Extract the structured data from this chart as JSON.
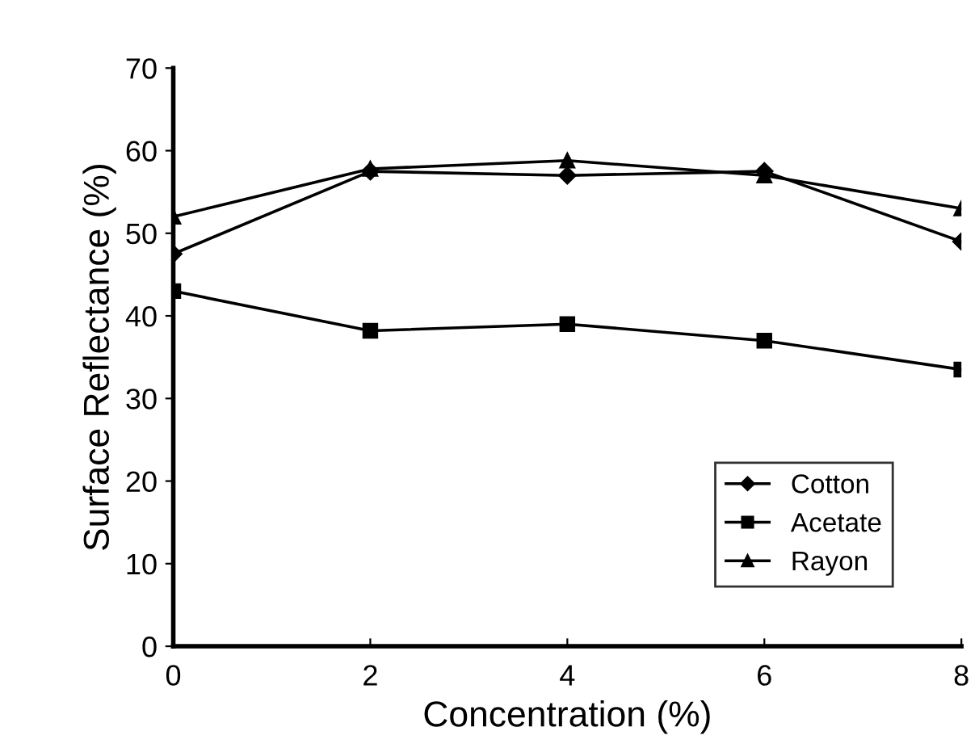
{
  "chart_data": {
    "type": "line",
    "xlabel": "Concentration (%)",
    "ylabel": "Surface Reflectance (%)",
    "x": [
      0,
      2,
      4,
      6,
      8
    ],
    "series": [
      {
        "name": "Cotton",
        "color": "#000000",
        "marker": "diamond",
        "values": [
          47.5,
          57.5,
          57,
          57.5,
          49
        ]
      },
      {
        "name": "Acetate",
        "color": "#000000",
        "marker": "square",
        "values": [
          43,
          38.2,
          39,
          37,
          33.5
        ]
      },
      {
        "name": "Rayon",
        "color": "#000000",
        "marker": "triangle",
        "values": [
          52,
          57.8,
          58.8,
          57,
          53
        ]
      }
    ],
    "xlim": [
      0,
      8
    ],
    "xticks": [
      0,
      2,
      4,
      6,
      8
    ],
    "ylim": [
      0,
      70
    ],
    "yticks": [
      0,
      10,
      20,
      30,
      40,
      50,
      60,
      70
    ],
    "grid": false,
    "legend": "bottom right",
    "line_style": "solid"
  }
}
